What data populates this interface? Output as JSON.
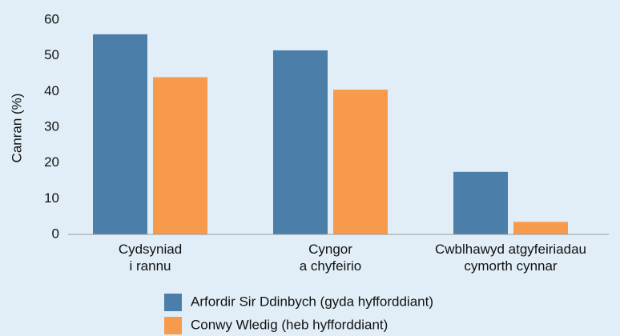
{
  "chart_data": {
    "type": "bar",
    "y_label": "Canran (%)",
    "categories": [
      [
        "Cydsyniad",
        "i rannu"
      ],
      [
        "Cyngor",
        "a chyfeirio"
      ],
      [
        "Cwblhawyd atgyfeiriadau",
        "cymorth cynnar"
      ]
    ],
    "series": [
      {
        "name": "Arfordir Sir Ddinbych (gyda hyfforddiant)",
        "color": "#4b7ea8",
        "values": [
          56,
          51.5,
          17.5
        ]
      },
      {
        "name": "Conwy Wledig (heb hyfforddiant)",
        "color": "#f79a4b",
        "values": [
          44,
          40.5,
          3.5
        ]
      }
    ],
    "ylim": [
      0,
      60
    ],
    "yticks": [
      0,
      10,
      20,
      30,
      40,
      50,
      60
    ],
    "grid": false,
    "legend": "bottom"
  }
}
